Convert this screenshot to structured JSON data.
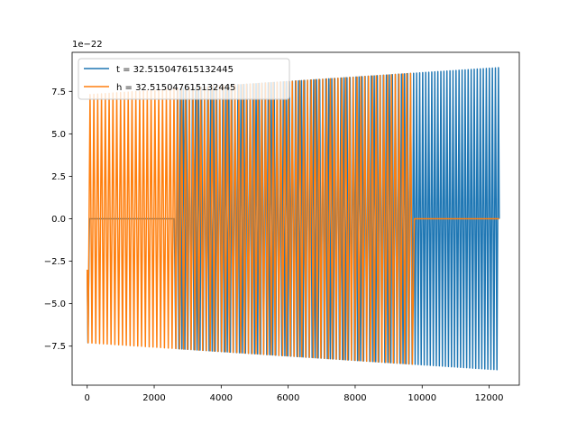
{
  "chart_data": {
    "type": "line",
    "title": "",
    "xlabel": "",
    "ylabel": "",
    "y_offset_label": "1e−22",
    "xlim": [
      -450,
      12900
    ],
    "ylim": [
      -9.8,
      9.8
    ],
    "xticks": [
      0,
      2000,
      4000,
      6000,
      8000,
      10000,
      12000
    ],
    "xtick_labels": [
      "0",
      "2000",
      "4000",
      "6000",
      "8000",
      "10000",
      "12000"
    ],
    "yticks": [
      -7.5,
      -5.0,
      -2.5,
      0.0,
      2.5,
      5.0,
      7.5
    ],
    "ytick_labels": [
      "−7.5",
      "−5.0",
      "−2.5",
      "0.0",
      "2.5",
      "5.0",
      "7.5"
    ],
    "grid": false,
    "legend": "top-left",
    "series": [
      {
        "name": "t = 32.515047615132445",
        "color": "#1f77b4",
        "shape": "oscillation",
        "x_range": [
          0,
          12300
        ],
        "cycles": 136,
        "amplitude_start": 7.3,
        "amplitude_end": 8.9,
        "start_value": -3.0,
        "flat_segments": [
          [
            50,
            2620
          ]
        ],
        "flat_value": 0.0
      },
      {
        "name": "h = 32.515047615132445",
        "color": "#ff7f0e",
        "shape": "oscillation",
        "x_range": [
          0,
          12300
        ],
        "cycles": 108,
        "amplitude_start": 7.3,
        "amplitude_end": 8.9,
        "start_value": -3.0,
        "flat_segments": [
          [
            9760,
            12300
          ]
        ],
        "flat_value": 0.0
      }
    ]
  }
}
